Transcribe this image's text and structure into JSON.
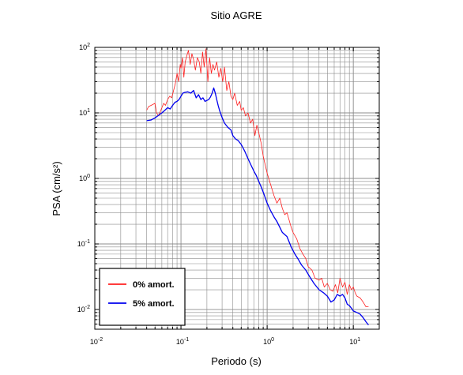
{
  "chart_data": {
    "type": "line",
    "title": "Sitio AGRE",
    "xlabel": "Periodo (s)",
    "ylabel": "PSA (cm/s²)",
    "xscale": "log",
    "yscale": "log",
    "xlim": [
      0.01,
      20
    ],
    "ylim": [
      0.005,
      100
    ],
    "grid": true,
    "legend_position": "bottom-left",
    "x_ticks": [
      {
        "value": 0.01,
        "base": "10",
        "exp": "-2"
      },
      {
        "value": 0.1,
        "base": "10",
        "exp": "-1"
      },
      {
        "value": 1,
        "base": "10",
        "exp": "0"
      },
      {
        "value": 10,
        "base": "10",
        "exp": "1"
      }
    ],
    "y_ticks": [
      {
        "value": 0.01,
        "base": "10",
        "exp": "-2"
      },
      {
        "value": 0.1,
        "base": "10",
        "exp": "-1"
      },
      {
        "value": 1,
        "base": "10",
        "exp": "0"
      },
      {
        "value": 10,
        "base": "10",
        "exp": "1"
      },
      {
        "value": 100,
        "base": "10",
        "exp": "2"
      }
    ],
    "series": [
      {
        "name": "0% amort.",
        "color": "#ff2020",
        "x": [
          0.04,
          0.042,
          0.045,
          0.05,
          0.052,
          0.055,
          0.06,
          0.063,
          0.066,
          0.07,
          0.074,
          0.078,
          0.082,
          0.086,
          0.09,
          0.094,
          0.098,
          0.1,
          0.104,
          0.108,
          0.112,
          0.117,
          0.122,
          0.128,
          0.134,
          0.14,
          0.147,
          0.155,
          0.163,
          0.17,
          0.178,
          0.186,
          0.195,
          0.205,
          0.215,
          0.225,
          0.235,
          0.245,
          0.26,
          0.275,
          0.29,
          0.305,
          0.32,
          0.34,
          0.36,
          0.38,
          0.4,
          0.42,
          0.45,
          0.48,
          0.5,
          0.53,
          0.56,
          0.6,
          0.64,
          0.68,
          0.72,
          0.76,
          0.8,
          0.85,
          0.9,
          0.95,
          1.0,
          1.1,
          1.2,
          1.3,
          1.4,
          1.5,
          1.6,
          1.7,
          1.8,
          1.9,
          2.0,
          2.2,
          2.4,
          2.6,
          2.8,
          3.0,
          3.3,
          3.6,
          4.0,
          4.3,
          4.6,
          5.0,
          5.4,
          5.8,
          6.2,
          6.6,
          7.0,
          7.5,
          8.0,
          8.5,
          9.0,
          9.5,
          10.0,
          10.5,
          11.0,
          12.0,
          13.0,
          14.0,
          15.0
        ],
        "y": [
          11,
          12.5,
          13,
          14,
          10,
          9,
          12,
          14,
          13,
          16,
          18,
          17,
          22,
          28,
          40,
          30,
          55,
          48,
          70,
          35,
          60,
          75,
          90,
          55,
          80,
          65,
          45,
          70,
          60,
          40,
          85,
          50,
          95,
          30,
          70,
          40,
          55,
          45,
          60,
          35,
          48,
          30,
          50,
          22,
          30,
          18,
          16,
          20,
          13,
          15,
          11,
          12,
          9,
          10,
          7,
          8,
          4.5,
          6.5,
          5.0,
          3.5,
          2.2,
          1.6,
          1.2,
          0.8,
          0.55,
          0.42,
          0.5,
          0.35,
          0.28,
          0.3,
          0.23,
          0.18,
          0.15,
          0.12,
          0.085,
          0.07,
          0.06,
          0.045,
          0.04,
          0.03,
          0.028,
          0.03,
          0.022,
          0.025,
          0.02,
          0.019,
          0.024,
          0.018,
          0.03,
          0.022,
          0.026,
          0.017,
          0.024,
          0.02,
          0.022,
          0.018,
          0.016,
          0.015,
          0.013,
          0.011,
          0.011
        ]
      },
      {
        "name": "5% amort.",
        "color": "#0000ee",
        "x": [
          0.04,
          0.045,
          0.05,
          0.055,
          0.06,
          0.065,
          0.07,
          0.075,
          0.08,
          0.085,
          0.09,
          0.095,
          0.1,
          0.105,
          0.11,
          0.12,
          0.13,
          0.14,
          0.15,
          0.16,
          0.17,
          0.18,
          0.19,
          0.2,
          0.21,
          0.22,
          0.23,
          0.24,
          0.25,
          0.26,
          0.27,
          0.28,
          0.3,
          0.32,
          0.35,
          0.38,
          0.4,
          0.43,
          0.46,
          0.5,
          0.55,
          0.6,
          0.65,
          0.7,
          0.75,
          0.8,
          0.85,
          0.9,
          1.0,
          1.1,
          1.2,
          1.3,
          1.4,
          1.5,
          1.7,
          1.9,
          2.1,
          2.3,
          2.5,
          2.8,
          3.1,
          3.5,
          4.0,
          4.5,
          5.0,
          5.5,
          6.0,
          6.5,
          7.0,
          7.5,
          8.0,
          8.5,
          9.0,
          9.5,
          10.0,
          11.0,
          12.0,
          13.0,
          14.0,
          15.0
        ],
        "y": [
          7.6,
          7.8,
          8.4,
          9.2,
          10,
          11,
          12,
          11.5,
          13,
          14.5,
          15,
          16,
          18,
          20,
          20.5,
          21,
          20,
          22,
          17,
          19,
          16,
          17,
          15,
          15.5,
          16,
          17.5,
          20,
          24,
          20,
          16,
          13,
          11,
          8.5,
          7,
          6,
          5.5,
          4.5,
          4,
          3.8,
          3.3,
          2.6,
          2.0,
          1.6,
          1.3,
          1.1,
          0.9,
          0.75,
          0.62,
          0.42,
          0.32,
          0.26,
          0.22,
          0.18,
          0.15,
          0.13,
          0.09,
          0.07,
          0.058,
          0.048,
          0.04,
          0.032,
          0.025,
          0.02,
          0.018,
          0.016,
          0.013,
          0.014,
          0.017,
          0.016,
          0.017,
          0.015,
          0.012,
          0.0115,
          0.0105,
          0.0095,
          0.009,
          0.0085,
          0.0075,
          0.0065,
          0.0058
        ]
      }
    ]
  }
}
